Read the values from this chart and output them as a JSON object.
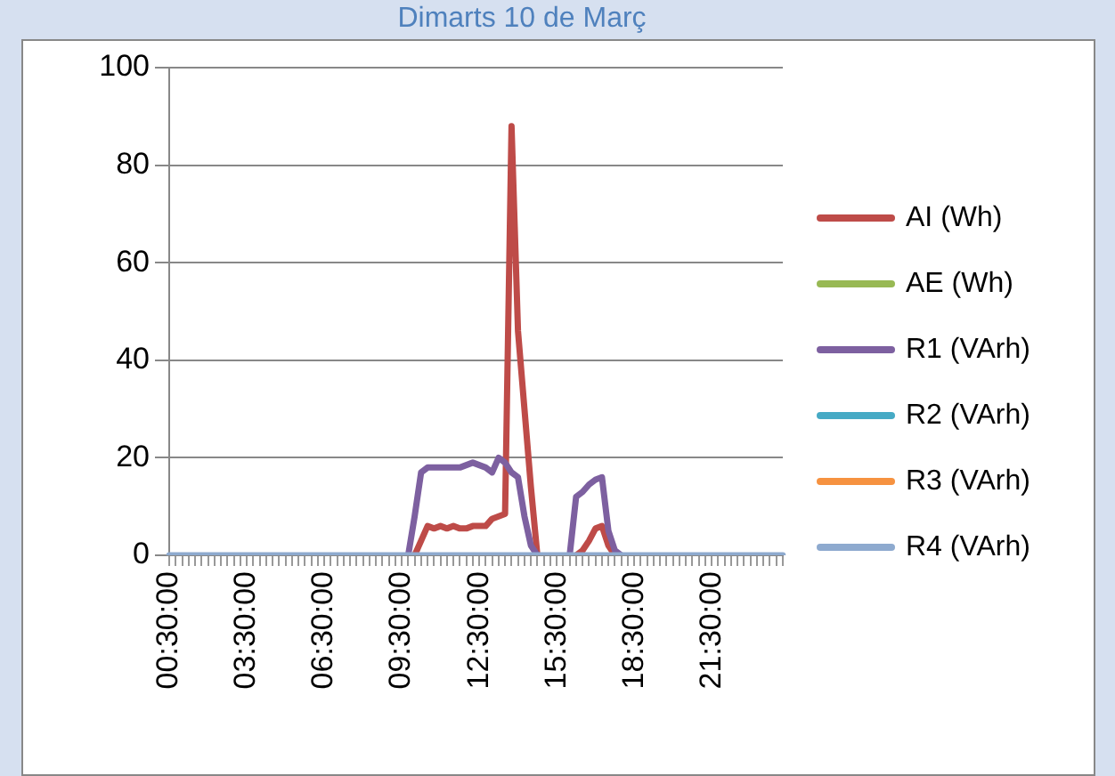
{
  "chart_data": {
    "type": "line",
    "title": "Dimarts 10 de Març",
    "categories": [
      "00:30:00",
      null,
      null,
      null,
      null,
      null,
      null,
      null,
      null,
      null,
      null,
      null,
      "03:30:00",
      null,
      null,
      null,
      null,
      null,
      null,
      null,
      null,
      null,
      null,
      null,
      "06:30:00",
      null,
      null,
      null,
      null,
      null,
      null,
      null,
      null,
      null,
      null,
      null,
      "09:30:00",
      null,
      null,
      null,
      null,
      null,
      null,
      null,
      null,
      null,
      null,
      null,
      "12:30:00",
      null,
      null,
      null,
      null,
      null,
      null,
      null,
      null,
      null,
      null,
      null,
      "15:30:00",
      null,
      null,
      null,
      null,
      null,
      null,
      null,
      null,
      null,
      null,
      null,
      "18:30:00",
      null,
      null,
      null,
      null,
      null,
      null,
      null,
      null,
      null,
      null,
      null,
      "21:30:00",
      null,
      null,
      null,
      null,
      null,
      null,
      null,
      null,
      null,
      null,
      null
    ],
    "series": [
      {
        "name": "AI (Wh)",
        "color": "#be4b48",
        "values": [
          null,
          null,
          null,
          null,
          null,
          null,
          null,
          null,
          null,
          null,
          null,
          null,
          null,
          null,
          null,
          null,
          null,
          null,
          null,
          null,
          null,
          null,
          null,
          null,
          null,
          null,
          null,
          null,
          null,
          null,
          null,
          null,
          null,
          null,
          null,
          null,
          null,
          null,
          0,
          3,
          6,
          5.5,
          6,
          5.5,
          6,
          5.5,
          5.5,
          6,
          6,
          6,
          7.5,
          8,
          8.5,
          88,
          46,
          30,
          14,
          0,
          null,
          null,
          null,
          null,
          null,
          0,
          1,
          3,
          5.5,
          6,
          2,
          0,
          null,
          null,
          null,
          null,
          null,
          null,
          null,
          null,
          null,
          null,
          null,
          null,
          null,
          null,
          null,
          null,
          null,
          null,
          null,
          null,
          null,
          null,
          null,
          null,
          null,
          null
        ]
      },
      {
        "name": "AE (Wh)",
        "color": "#98b954",
        "values": [
          null,
          null,
          null,
          null,
          null,
          null,
          null,
          null,
          null,
          null,
          null,
          null,
          null,
          null,
          null,
          null,
          null,
          null,
          null,
          null,
          null,
          null,
          null,
          null,
          null,
          null,
          null,
          null,
          null,
          null,
          null,
          null,
          null,
          null,
          null,
          null,
          null,
          null,
          null,
          null,
          null,
          null,
          null,
          null,
          null,
          null,
          null,
          null,
          null,
          null,
          null,
          null,
          null,
          null,
          null,
          null,
          null,
          null,
          null,
          null,
          null,
          null,
          null,
          null,
          null,
          null,
          null,
          null,
          null,
          null,
          null,
          null,
          null,
          null,
          null,
          null,
          null,
          null,
          null,
          null,
          null,
          null,
          null,
          null,
          null,
          null,
          null,
          null,
          null,
          null,
          null,
          null,
          null,
          null,
          null,
          null
        ]
      },
      {
        "name": "R1 (VArh)",
        "color": "#7d60a0",
        "values": [
          null,
          null,
          null,
          null,
          null,
          null,
          null,
          null,
          null,
          null,
          null,
          null,
          null,
          null,
          null,
          null,
          null,
          null,
          null,
          null,
          null,
          null,
          null,
          null,
          null,
          null,
          null,
          null,
          null,
          null,
          null,
          null,
          null,
          null,
          null,
          null,
          null,
          0,
          8,
          17,
          18,
          18,
          18,
          18,
          18,
          18,
          18.5,
          19,
          18.5,
          18,
          17,
          20,
          19,
          17,
          16,
          8,
          2,
          0,
          null,
          null,
          null,
          null,
          0,
          12,
          13,
          14.5,
          15.5,
          16,
          5,
          1,
          0,
          null,
          null,
          null,
          null,
          null,
          null,
          null,
          null,
          null,
          null,
          null,
          null,
          null,
          null,
          null,
          null,
          null,
          null,
          null,
          null,
          null,
          null,
          null,
          null,
          null
        ]
      },
      {
        "name": "R2 (VArh)",
        "color": "#46aac5",
        "values": [
          null,
          null,
          null,
          null,
          null,
          null,
          null,
          null,
          null,
          null,
          null,
          null,
          null,
          null,
          null,
          null,
          null,
          null,
          null,
          null,
          null,
          null,
          null,
          null,
          null,
          null,
          null,
          null,
          null,
          null,
          null,
          null,
          null,
          null,
          null,
          null,
          null,
          null,
          null,
          null,
          null,
          null,
          null,
          null,
          null,
          null,
          null,
          null,
          null,
          null,
          null,
          null,
          null,
          null,
          null,
          null,
          null,
          null,
          null,
          null,
          null,
          null,
          null,
          null,
          null,
          null,
          null,
          null,
          null,
          null,
          null,
          null,
          null,
          null,
          null,
          null,
          null,
          null,
          null,
          null,
          null,
          null,
          null,
          null,
          null,
          null,
          null,
          null,
          null,
          null,
          null,
          null,
          null,
          null,
          null,
          null
        ]
      },
      {
        "name": "R3 (VArh)",
        "color": "#f69240",
        "values": [
          null,
          null,
          null,
          null,
          null,
          null,
          null,
          null,
          null,
          null,
          null,
          null,
          null,
          null,
          null,
          null,
          null,
          null,
          null,
          null,
          null,
          null,
          null,
          null,
          null,
          null,
          null,
          null,
          null,
          null,
          null,
          null,
          null,
          null,
          null,
          null,
          null,
          null,
          null,
          null,
          null,
          null,
          null,
          null,
          null,
          null,
          null,
          null,
          null,
          null,
          null,
          null,
          null,
          null,
          null,
          null,
          null,
          null,
          null,
          null,
          null,
          null,
          null,
          null,
          null,
          null,
          null,
          null,
          null,
          null,
          null,
          null,
          null,
          null,
          null,
          null,
          null,
          null,
          null,
          null,
          null,
          null,
          null,
          null,
          null,
          null,
          null,
          null,
          null,
          null,
          null,
          null,
          null,
          null,
          null,
          null
        ]
      },
      {
        "name": "R4 (VArh)",
        "color": "#8eaacf",
        "values": [
          0,
          0,
          0,
          0,
          0,
          0,
          0,
          0,
          0,
          0,
          0,
          0,
          0,
          0,
          0,
          0,
          0,
          0,
          0,
          0,
          0,
          0,
          0,
          0,
          0,
          0,
          0,
          0,
          0,
          0,
          0,
          0,
          0,
          0,
          0,
          0,
          0,
          0,
          0,
          0,
          0,
          0,
          0,
          0,
          0,
          0,
          0,
          0,
          0,
          0,
          0,
          0,
          0,
          0,
          0,
          0,
          0,
          0,
          0,
          0,
          0,
          0,
          0,
          0,
          0,
          0,
          0,
          0,
          0,
          0,
          0,
          0,
          0,
          0,
          0,
          0,
          0,
          0,
          0,
          0,
          0,
          0,
          0,
          0,
          0,
          0,
          0,
          0,
          0,
          0,
          0,
          0,
          0,
          0,
          0,
          0
        ]
      }
    ],
    "ylim": [
      0,
      100
    ],
    "yticks": [
      0,
      20,
      40,
      60,
      80,
      100
    ],
    "grid": "y",
    "legend": "right",
    "marker": "none",
    "line_style": "solid"
  }
}
